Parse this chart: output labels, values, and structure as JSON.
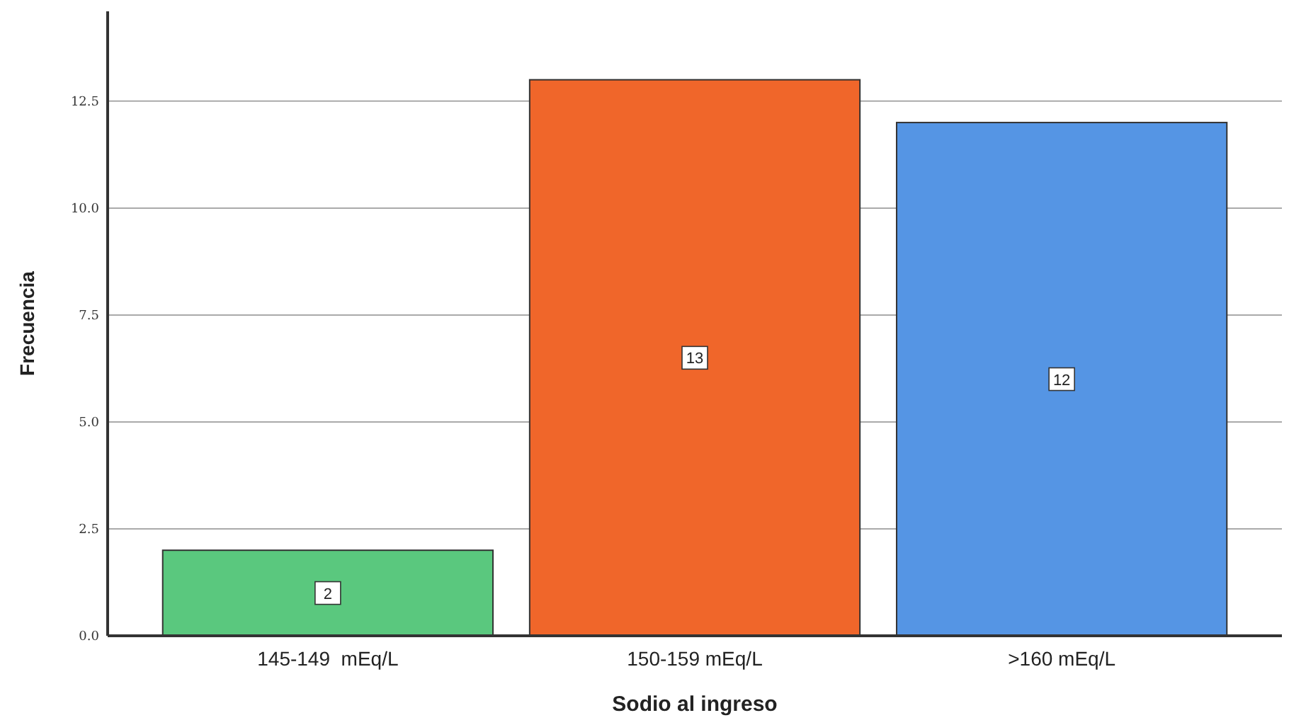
{
  "chart_data": {
    "type": "bar",
    "xlabel": "Sodio al ingreso",
    "ylabel": "Frecuencia",
    "categories": [
      "145-149  mEq/L",
      "150-159 mEq/L",
      ">160 mEq/L"
    ],
    "values": [
      2,
      13,
      12
    ],
    "colors": [
      "#5ac87e",
      "#f0662a",
      "#5595e4"
    ],
    "ylim": [
      0,
      14.6
    ],
    "yticks": [
      {
        "value": 0,
        "label": "0.0"
      },
      2.5,
      {
        "value": 5,
        "label": "5.0"
      },
      7.5,
      {
        "value": 10,
        "label": "10.0"
      },
      12.5
    ],
    "grid": "y",
    "data_labels": true
  }
}
